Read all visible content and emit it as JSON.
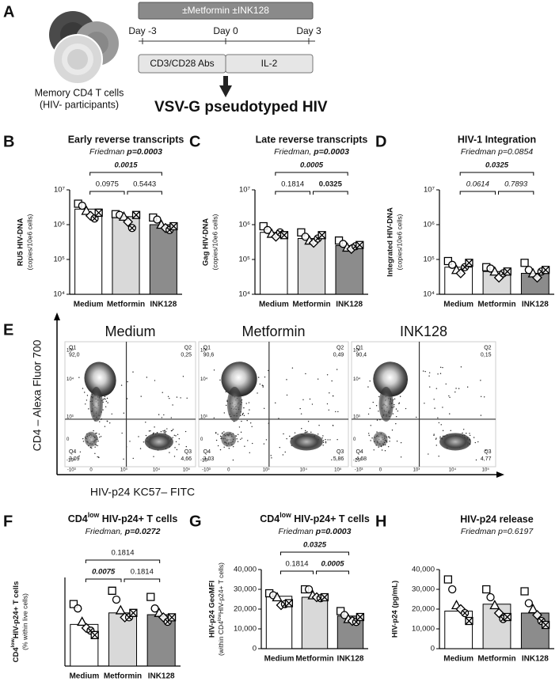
{
  "panel_a": {
    "letter": "A",
    "cells_label": [
      "Memory CD4 T cells",
      "(HIV- participants)"
    ],
    "treatment": "±Metformin ±INK128",
    "days": [
      "Day -3",
      "Day 0",
      "Day 3"
    ],
    "phases": [
      "CD3/CD28 Abs",
      "IL-2"
    ],
    "infection": "VSV-G pseudotyped HIV"
  },
  "chart_data": [
    {
      "type": "bar",
      "letter": "B",
      "title": "Early reverse transcripts",
      "subtitle": [
        {
          "text": "Friedman "
        },
        {
          "text": "p=0.0003",
          "bold": true
        }
      ],
      "ylabel": [
        "RU5 HIV-DNA",
        "(copies/10e6 cells)"
      ],
      "log_y": true,
      "ylim": [
        10000,
        10000000
      ],
      "yticks": [
        {
          "value": 10000,
          "label": "10⁴"
        },
        {
          "value": 100000,
          "label": "10⁵"
        },
        {
          "value": 1000000,
          "label": "10⁶"
        },
        {
          "value": 10000000,
          "label": "10⁷"
        }
      ],
      "categories": [
        "Medium",
        "Metformin",
        "INK128"
      ],
      "colors": [
        "#ffffff",
        "#d9d9d9",
        "#8c8c8c"
      ],
      "values": [
        2800000,
        1700000,
        1000000
      ],
      "points": [
        [
          4000000,
          3500000,
          2500000,
          1800000,
          1500000,
          2200000
        ],
        [
          2000000,
          1900000,
          1700000,
          1200000,
          800000,
          1900000
        ],
        [
          1600000,
          1400000,
          1000000,
          800000,
          700000,
          900000
        ]
      ],
      "markers": [
        "square",
        "circle",
        "triangle",
        "diamond",
        "circle-x",
        "square-x"
      ],
      "comparisons": [
        {
          "from": 0,
          "to": 2,
          "label": "0.0015",
          "bold": true,
          "italic": true
        },
        {
          "from": 0,
          "to": 1,
          "label": "0.0975"
        },
        {
          "from": 1,
          "to": 2,
          "label": "0.5443"
        }
      ]
    },
    {
      "type": "bar",
      "letter": "C",
      "title": "Late reverse transcripts",
      "subtitle": [
        {
          "text": "Friedman, "
        },
        {
          "text": "p=0.0003",
          "bold": true
        }
      ],
      "ylabel": [
        "Gag HIV-DNA",
        "(copies/10e6 cells)"
      ],
      "log_y": true,
      "ylim": [
        10000,
        10000000
      ],
      "yticks": [
        {
          "value": 10000,
          "label": "10⁴"
        },
        {
          "value": 100000,
          "label": "10⁵"
        },
        {
          "value": 1000000,
          "label": "10⁶"
        },
        {
          "value": 10000000,
          "label": "10⁷"
        }
      ],
      "categories": [
        "Medium",
        "Metformin",
        "INK128"
      ],
      "colors": [
        "#ffffff",
        "#d9d9d9",
        "#8c8c8c"
      ],
      "values": [
        600000,
        400000,
        250000
      ],
      "points": [
        [
          900000,
          700000,
          550000,
          450000,
          600000,
          500000
        ],
        [
          600000,
          450000,
          350000,
          300000,
          400000,
          500000
        ],
        [
          350000,
          280000,
          220000,
          200000,
          240000,
          260000
        ]
      ],
      "markers": [
        "square",
        "circle",
        "triangle",
        "diamond",
        "circle-x",
        "square-x"
      ],
      "comparisons": [
        {
          "from": 0,
          "to": 2,
          "label": "0.0005",
          "bold": true,
          "italic": true
        },
        {
          "from": 0,
          "to": 1,
          "label": "0.1814"
        },
        {
          "from": 1,
          "to": 2,
          "label": "0.0325",
          "bold": true
        }
      ]
    },
    {
      "type": "bar",
      "letter": "D",
      "title": "HIV-1 Integration",
      "subtitle": [
        {
          "text": "Friedman p=0.0854"
        }
      ],
      "ylabel": [
        "Integrated HIV-DNA",
        "(copies/10e6 cells)"
      ],
      "log_y": true,
      "ylim": [
        10000,
        10000000
      ],
      "yticks": [
        {
          "value": 10000,
          "label": "10⁴"
        },
        {
          "value": 100000,
          "label": "10⁵"
        },
        {
          "value": 1000000,
          "label": "10⁶"
        },
        {
          "value": 10000000,
          "label": "10⁷"
        }
      ],
      "categories": [
        "Medium",
        "Metformin",
        "INK128"
      ],
      "colors": [
        "#ffffff",
        "#d9d9d9",
        "#8c8c8c"
      ],
      "values": [
        60000,
        45000,
        40000
      ],
      "points": [
        [
          90000,
          70000,
          50000,
          40000,
          60000,
          80000
        ],
        [
          60000,
          55000,
          45000,
          30000,
          40000,
          45000
        ],
        [
          80000,
          50000,
          40000,
          30000,
          45000,
          50000
        ]
      ],
      "markers": [
        "square",
        "circle",
        "triangle",
        "diamond",
        "circle-x",
        "square-x"
      ],
      "comparisons": [
        {
          "from": 0,
          "to": 2,
          "label": "0.0325",
          "bold": true,
          "italic": true
        },
        {
          "from": 0,
          "to": 1,
          "label": "0.0614",
          "italic": true
        },
        {
          "from": 1,
          "to": 2,
          "label": "0.7893",
          "italic": true
        }
      ]
    },
    {
      "type": "bar",
      "letter": "F",
      "title": [
        {
          "text": "CD4"
        },
        {
          "text": "low",
          "sup": true
        },
        {
          "text": " HIV-p24+ T cells"
        }
      ],
      "subtitle": [
        {
          "text": "Friedman, "
        },
        {
          "text": "p=0.0272",
          "bold": true
        }
      ],
      "ylabel": [
        [
          {
            "text": "CD4"
          },
          {
            "text": "low",
            "sup": true
          },
          {
            "text": "HIV-p24+ T cells"
          }
        ],
        "(% within live cells)"
      ],
      "log_y": false,
      "ylim": [
        0,
        10
      ],
      "categories": [
        "Medium",
        "Metformin",
        "INK128"
      ],
      "colors": [
        "#ffffff",
        "#d9d9d9",
        "#8c8c8c"
      ],
      "values": [
        4.7,
        6,
        5.8
      ],
      "points": [
        [
          7,
          6.5,
          5,
          4.3,
          4,
          3.5
        ],
        [
          8.5,
          7.5,
          6.3,
          5.5,
          5.5,
          6
        ],
        [
          7.8,
          6.5,
          6,
          5.5,
          5,
          5.5
        ]
      ],
      "markers": [
        "square",
        "circle",
        "triangle",
        "diamond",
        "circle-x",
        "square-x"
      ],
      "comparisons": [
        {
          "from": 0,
          "to": 2,
          "label": "0.1814"
        },
        {
          "from": 0,
          "to": 1,
          "label": "0.0075",
          "bold": true,
          "italic": true
        },
        {
          "from": 1,
          "to": 2,
          "label": "0.1814"
        }
      ]
    },
    {
      "type": "bar",
      "letter": "G",
      "title": [
        {
          "text": "CD4"
        },
        {
          "text": "low",
          "sup": true
        },
        {
          "text": " HIV-p24+ T cells"
        }
      ],
      "subtitle": [
        {
          "text": "Friedman "
        },
        {
          "text": "p=0.0003",
          "bold": true
        }
      ],
      "ylabel": [
        "HIV-p24 GeoMFI",
        [
          {
            "text": "(within CD4"
          },
          {
            "text": "low",
            "sup": true
          },
          {
            "text": "HIV-p24+ T cells)"
          }
        ]
      ],
      "log_y": false,
      "ylim": [
        0,
        40000
      ],
      "yticks": [
        0,
        {
          "value": 10000,
          "label": "10,000"
        },
        {
          "value": 20000,
          "label": "20,000"
        },
        {
          "value": 30000,
          "label": "30,000"
        },
        {
          "value": 40000,
          "label": "40,000"
        }
      ],
      "categories": [
        "Medium",
        "Metformin",
        "INK128"
      ],
      "colors": [
        "#ffffff",
        "#d9d9d9",
        "#8c8c8c"
      ],
      "values": [
        26500,
        26000,
        16500
      ],
      "points": [
        [
          28000,
          27000,
          26000,
          22000,
          22500,
          23000
        ],
        [
          30000,
          30000,
          27000,
          26000,
          25500,
          26000
        ],
        [
          19000,
          17000,
          15000,
          14000,
          13500,
          16000
        ]
      ],
      "markers": [
        "square",
        "circle",
        "triangle",
        "diamond",
        "circle-x",
        "square-x"
      ],
      "comparisons": [
        {
          "from": 0,
          "to": 2,
          "label": "0.0325",
          "bold": true,
          "italic": true
        },
        {
          "from": 0,
          "to": 1,
          "label": "0.1814"
        },
        {
          "from": 1,
          "to": 2,
          "label": "0.0005",
          "bold": true,
          "italic": true
        }
      ]
    },
    {
      "type": "bar",
      "letter": "H",
      "title": "HIV-p24 release",
      "subtitle": [
        {
          "text": "Friedman p=0.6197"
        }
      ],
      "ylabel": [
        "HIV-p24 (pg/mL)"
      ],
      "log_y": false,
      "ylim": [
        0,
        40000
      ],
      "yticks": [
        0,
        {
          "value": 10000,
          "label": "10,000"
        },
        {
          "value": 20000,
          "label": "20,000"
        },
        {
          "value": 30000,
          "label": "30,000"
        },
        {
          "value": 40000,
          "label": "40,000"
        }
      ],
      "categories": [
        "Medium",
        "Metformin",
        "INK128"
      ],
      "colors": [
        "#ffffff",
        "#d9d9d9",
        "#8c8c8c"
      ],
      "values": [
        19000,
        22500,
        18000
      ],
      "points": [
        [
          35000,
          30000,
          22000,
          20000,
          18000,
          14000
        ],
        [
          30000,
          26000,
          22000,
          18000,
          15000,
          16000
        ],
        [
          29000,
          23000,
          20000,
          17000,
          14000,
          12000
        ]
      ],
      "markers": [
        "square",
        "circle",
        "triangle",
        "diamond",
        "circle-x",
        "square-x"
      ],
      "comparisons": []
    }
  ],
  "panel_e": {
    "letter": "E",
    "ylabel": "CD4 – Alexa Fluor 700",
    "xlabel": "HIV-p24 KC57– FITC",
    "ytick_labels": [
      "10⁵",
      "10⁴",
      "10³",
      "0",
      "-10³"
    ],
    "xtick_labels": [
      "-10³",
      "0",
      "10³",
      "10⁴",
      "10⁵"
    ],
    "plots": [
      {
        "title": "Medium",
        "quadrants": [
          {
            "name": "Q1",
            "value": "92,0"
          },
          {
            "name": "Q2",
            "value": "0,25"
          },
          {
            "name": "Q4",
            "value": "3,09"
          },
          {
            "name": "Q3",
            "value": "4,66"
          }
        ]
      },
      {
        "title": "Metformin",
        "quadrants": [
          {
            "name": "Q1",
            "value": "90,6"
          },
          {
            "name": "Q2",
            "value": "0,49"
          },
          {
            "name": "Q4",
            "value": "3,03"
          },
          {
            "name": "Q3",
            "value": "5,86"
          }
        ]
      },
      {
        "title": "INK128",
        "quadrants": [
          {
            "name": "Q1",
            "value": "90,4"
          },
          {
            "name": "Q2",
            "value": "0,15"
          },
          {
            "name": "Q4",
            "value": "4,68"
          },
          {
            "name": "Q3",
            "value": "4,77"
          }
        ]
      }
    ]
  }
}
